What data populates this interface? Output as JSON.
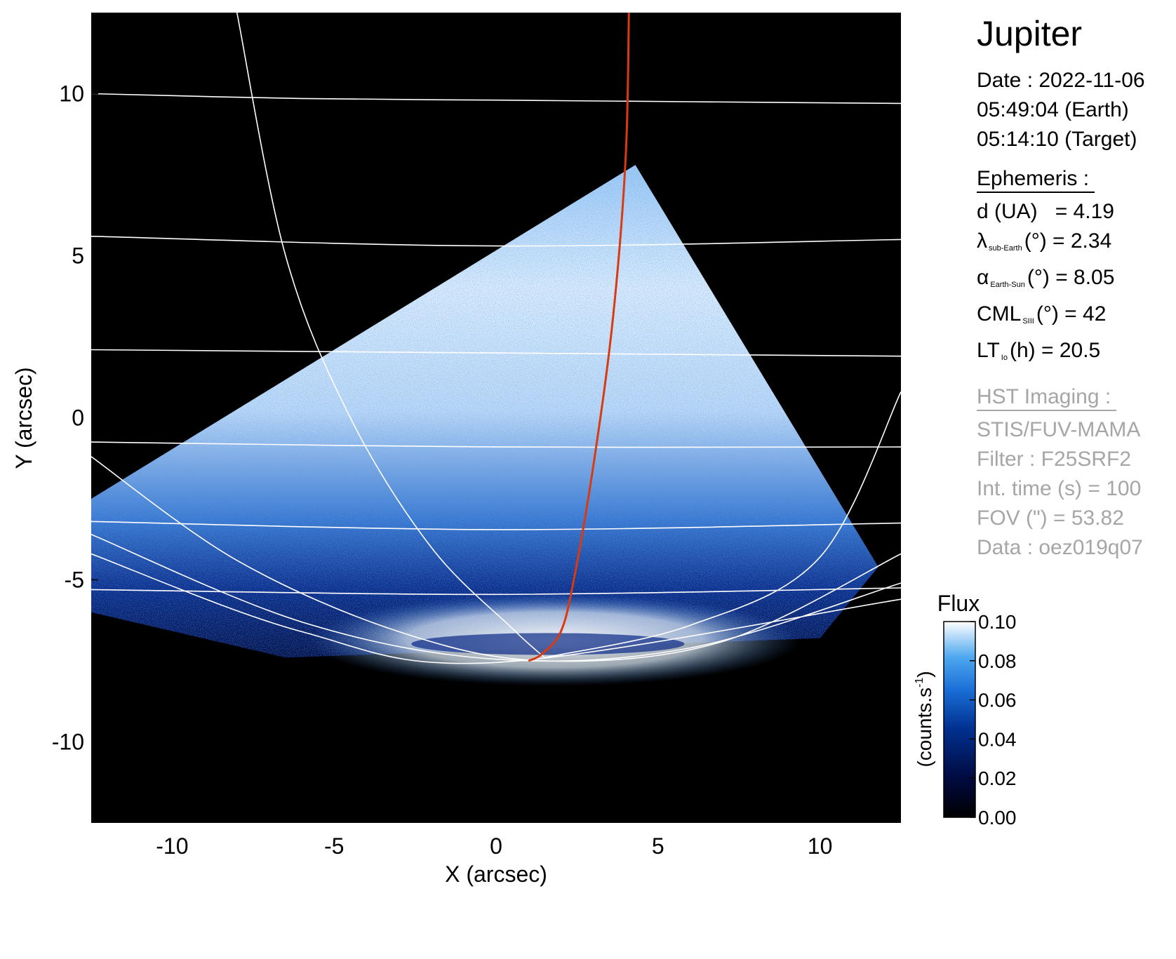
{
  "chart_data": {
    "type": "heatmap",
    "title": "Jupiter",
    "xlabel": "X (arcsec)",
    "ylabel": "Y (arcsec)",
    "xlim": [
      -12.5,
      12.5
    ],
    "ylim": [
      -12.5,
      12.5
    ],
    "xticks": [
      -10,
      -5,
      0,
      5,
      10
    ],
    "yticks": [
      10,
      5,
      0,
      -5,
      -10
    ],
    "colorbar": {
      "title": "Flux",
      "label": "(counts.s",
      "label_sup": "-1",
      "label_end": ")",
      "range": [
        0.0,
        0.1
      ],
      "ticks": [
        "0.10",
        "0.08",
        "0.06",
        "0.04",
        "0.02",
        "0.00"
      ],
      "colors": [
        "#000000",
        "#000a40",
        "#00308f",
        "#1a6ed6",
        "#4fa8f0",
        "#ffffff"
      ]
    },
    "field_of_view_polygon": [
      [
        -12.5,
        -2.5
      ],
      [
        4.3,
        7.8
      ],
      [
        11.8,
        -4.6
      ],
      [
        10.0,
        -6.8
      ],
      [
        -6.5,
        -7.4
      ],
      [
        -12.5,
        -6.0
      ]
    ],
    "auroral_oval": {
      "center": [
        1.8,
        -6.85
      ],
      "semi_axes": [
        6.8,
        0.75
      ]
    },
    "red_meridian": [
      [
        4.1,
        12.5
      ],
      [
        4.0,
        8.0
      ],
      [
        3.6,
        3.0
      ],
      [
        3.0,
        -1.5
      ],
      [
        2.4,
        -5.0
      ],
      [
        2.0,
        -6.6
      ],
      [
        1.4,
        -7.3
      ],
      [
        1.0,
        -7.5
      ]
    ],
    "grid_latitudes": [
      [
        [
          -12.5,
          10.0
        ],
        [
          -6.0,
          9.85
        ],
        [
          0.0,
          9.8
        ],
        [
          6.0,
          9.75
        ],
        [
          12.5,
          9.7
        ]
      ],
      [
        [
          -12.5,
          5.6
        ],
        [
          0.0,
          5.3
        ],
        [
          12.5,
          5.5
        ]
      ],
      [
        [
          -12.5,
          2.1
        ],
        [
          0.0,
          2.0
        ],
        [
          12.5,
          1.9
        ]
      ],
      [
        [
          -12.5,
          -0.75
        ],
        [
          0.0,
          -0.9
        ],
        [
          12.5,
          -0.9
        ]
      ],
      [
        [
          -12.5,
          -3.2
        ],
        [
          0.0,
          -3.45
        ],
        [
          12.5,
          -3.25
        ]
      ],
      [
        [
          -12.5,
          -5.3
        ],
        [
          0.0,
          -5.45
        ],
        [
          12.5,
          -5.25
        ]
      ]
    ],
    "grid_longitudes": [
      [
        [
          -8.0,
          12.5
        ],
        [
          -6.5,
          5.0
        ],
        [
          -4.5,
          0.0
        ],
        [
          -2.0,
          -4.0
        ],
        [
          0.5,
          -6.5
        ],
        [
          1.5,
          -7.4
        ]
      ],
      [
        [
          -12.5,
          -1.2
        ],
        [
          -8.0,
          -4.4
        ],
        [
          -3.0,
          -6.6
        ],
        [
          1.5,
          -7.5
        ],
        [
          7.0,
          -6.9
        ],
        [
          12.5,
          -4.2
        ]
      ],
      [
        [
          -12.5,
          -3.6
        ],
        [
          -6.0,
          -6.3
        ],
        [
          0.0,
          -7.45
        ],
        [
          6.0,
          -7.1
        ],
        [
          12.5,
          -5.1
        ]
      ],
      [
        [
          -12.5,
          -4.2
        ],
        [
          -6.0,
          -6.6
        ],
        [
          0.0,
          -7.55
        ],
        [
          12.5,
          -5.6
        ]
      ],
      [
        [
          1.5,
          -7.4
        ],
        [
          6.0,
          -6.4
        ],
        [
          10.0,
          -4.3
        ],
        [
          12.5,
          0.8
        ]
      ]
    ]
  },
  "sidebar": {
    "title": "Jupiter",
    "date": "Date : 2022-11-06",
    "time_earth": "05:49:04 (Earth)",
    "time_target": "05:14:10 (Target)",
    "ephemeris": {
      "header": "Ephemeris :",
      "d_name": "d (UA)",
      "d_value": "= 4.19",
      "lat_symbol": "λ",
      "lat_sub": "sub-Earth",
      "lat_value": "(°) = 2.34",
      "phase_symbol": "α",
      "phase_sub": "Earth-Sun",
      "phase_value": "(°) = 8.05",
      "cml_symbol": "CML",
      "cml_sub": "SIII",
      "cml_value": "(°) = 42",
      "lt_symbol": "LT",
      "lt_sub": "Io",
      "lt_value": "(h) = 20.5"
    },
    "hst": {
      "header": "HST Imaging :",
      "instrument": "STIS/FUV-MAMA",
      "filter": "Filter : F25SRF2",
      "int_time": "Int. time (s) = 100",
      "fov": "FOV (\") = 53.82",
      "data": "Data : oez019q07"
    }
  },
  "colors": {
    "background": "#000000",
    "grid": "#ffffff",
    "meridian": "#d93a10",
    "muted_text": "#a6a6a6"
  }
}
